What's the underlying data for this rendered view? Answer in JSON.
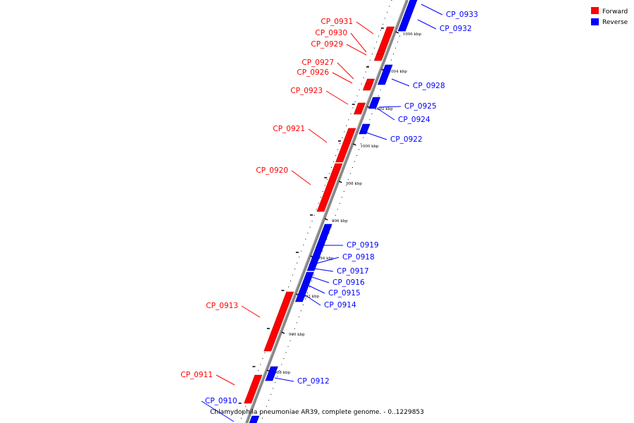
{
  "legend": {
    "forward_label": "Forward",
    "reverse_label": "Reverse",
    "forward_color": "#ff0000",
    "reverse_color": "#0000ff"
  },
  "caption": "Chlamydophila pneumoniae AR39, complete genome. - 0..1229853",
  "ticks": [
    "1006 kbp",
    "1004 kbp",
    "1002 kbp",
    "1000 kbp",
    "998 kbp",
    "996 kbp",
    "994 kbp",
    "992 kbp",
    "990 kbp",
    "988 kbp"
  ],
  "genes": [
    {
      "name": "CP_0933",
      "strand": "reverse"
    },
    {
      "name": "CP_0932",
      "strand": "reverse"
    },
    {
      "name": "CP_0931",
      "strand": "forward"
    },
    {
      "name": "CP_0930",
      "strand": "forward"
    },
    {
      "name": "CP_0929",
      "strand": "forward"
    },
    {
      "name": "CP_0928",
      "strand": "reverse"
    },
    {
      "name": "CP_0927",
      "strand": "forward"
    },
    {
      "name": "CP_0926",
      "strand": "forward"
    },
    {
      "name": "CP_0925",
      "strand": "reverse"
    },
    {
      "name": "CP_0924",
      "strand": "reverse"
    },
    {
      "name": "CP_0923",
      "strand": "forward"
    },
    {
      "name": "CP_0922",
      "strand": "reverse"
    },
    {
      "name": "CP_0921",
      "strand": "forward"
    },
    {
      "name": "CP_0920",
      "strand": "forward"
    },
    {
      "name": "CP_0919",
      "strand": "reverse"
    },
    {
      "name": "CP_0918",
      "strand": "reverse"
    },
    {
      "name": "CP_0917",
      "strand": "reverse"
    },
    {
      "name": "CP_0916",
      "strand": "reverse"
    },
    {
      "name": "CP_0915",
      "strand": "reverse"
    },
    {
      "name": "CP_0914",
      "strand": "reverse"
    },
    {
      "name": "CP_0913",
      "strand": "forward"
    },
    {
      "name": "CP_0912",
      "strand": "reverse"
    },
    {
      "name": "CP_0911",
      "strand": "forward"
    },
    {
      "name": "CP_0910",
      "strand": "reverse"
    }
  ]
}
